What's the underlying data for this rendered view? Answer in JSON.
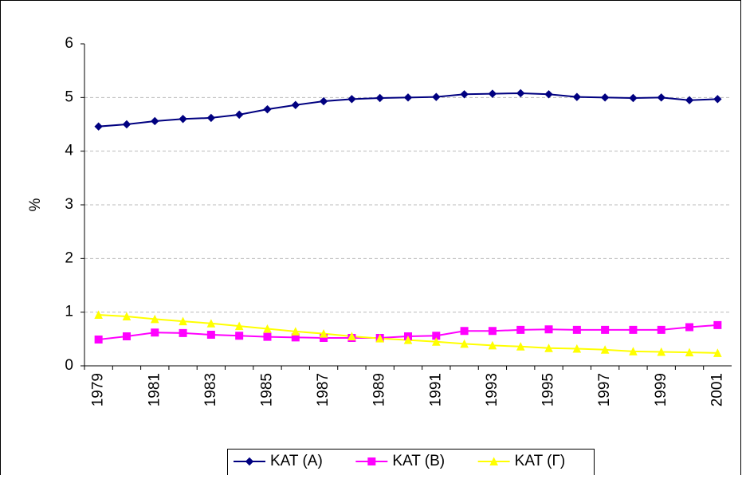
{
  "chart_data": {
    "type": "line",
    "y_label": "%",
    "categories": [
      "1979",
      null,
      "1981",
      null,
      "1983",
      null,
      "1985",
      null,
      "1987",
      null,
      "1989",
      null,
      "1991",
      null,
      "1993",
      null,
      "1995",
      null,
      "1997",
      null,
      "1999",
      null,
      "2001"
    ],
    "series": [
      {
        "name": "KAT (A)",
        "color": "#000080",
        "marker": "diamond",
        "values": [
          4.46,
          4.5,
          4.56,
          4.6,
          4.62,
          4.68,
          4.78,
          4.86,
          4.93,
          4.97,
          4.99,
          5.0,
          5.01,
          5.06,
          5.07,
          5.08,
          5.06,
          5.01,
          5.0,
          4.99,
          5.0,
          4.95,
          4.97
        ]
      },
      {
        "name": "KAT (B)",
        "color": "#ff00ff",
        "marker": "square",
        "values": [
          0.49,
          0.55,
          0.62,
          0.61,
          0.58,
          0.56,
          0.54,
          0.53,
          0.52,
          0.52,
          0.52,
          0.55,
          0.56,
          0.65,
          0.65,
          0.67,
          0.68,
          0.67,
          0.67,
          0.67,
          0.67,
          0.72,
          0.76
        ]
      },
      {
        "name": "KAT (Γ)",
        "color": "#ffff00",
        "marker": "triangle",
        "values": [
          0.95,
          0.92,
          0.87,
          0.83,
          0.79,
          0.74,
          0.69,
          0.64,
          0.6,
          0.55,
          0.51,
          0.48,
          0.45,
          0.41,
          0.38,
          0.36,
          0.33,
          0.32,
          0.3,
          0.27,
          0.26,
          0.25,
          0.24
        ]
      }
    ],
    "ylim": [
      0,
      6
    ],
    "yticks": [
      0,
      1,
      2,
      3,
      4,
      5,
      6
    ],
    "grid": true,
    "legend": "bottom"
  }
}
